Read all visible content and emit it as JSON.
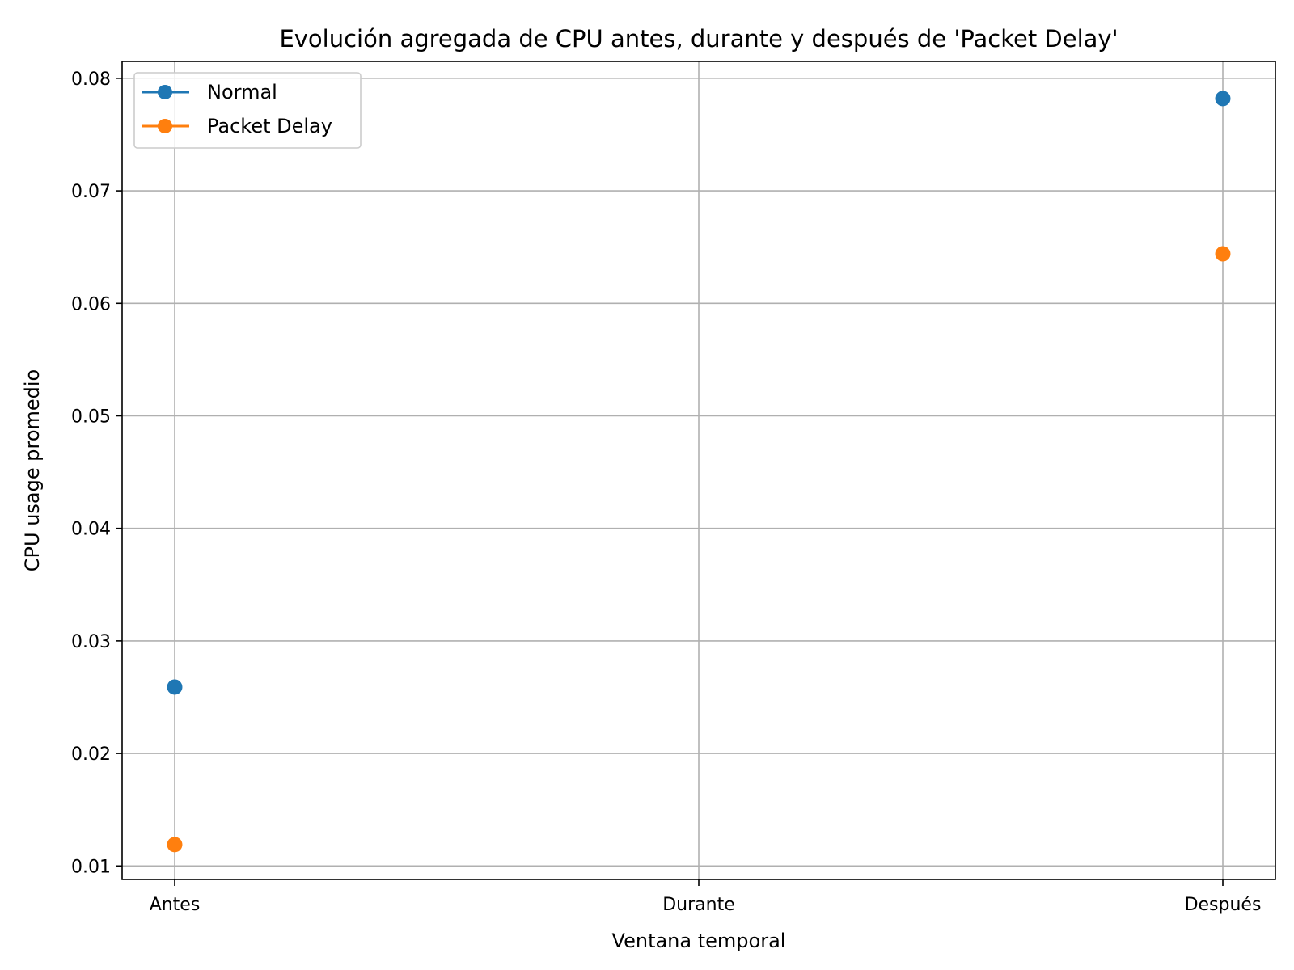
{
  "chart_data": {
    "type": "line",
    "title": "Evolución agregada de CPU antes, durante y después de 'Packet Delay'",
    "xlabel": "Ventana temporal",
    "ylabel": "CPU usage promedio",
    "categories": [
      "Antes",
      "Durante",
      "Después"
    ],
    "series": [
      {
        "name": "Normal",
        "color": "#1f77b4",
        "values": [
          0.0259,
          null,
          0.0782
        ]
      },
      {
        "name": "Packet Delay",
        "color": "#ff7f0e",
        "values": [
          0.0119,
          null,
          0.0644
        ]
      }
    ],
    "ylim": [
      0.0088,
      0.0815
    ],
    "yticks": [
      0.01,
      0.02,
      0.03,
      0.04,
      0.05,
      0.06,
      0.07,
      0.08
    ],
    "ytick_labels": [
      "0.01",
      "0.02",
      "0.03",
      "0.04",
      "0.05",
      "0.06",
      "0.07",
      "0.08"
    ],
    "grid": true,
    "legend": "top-left"
  }
}
